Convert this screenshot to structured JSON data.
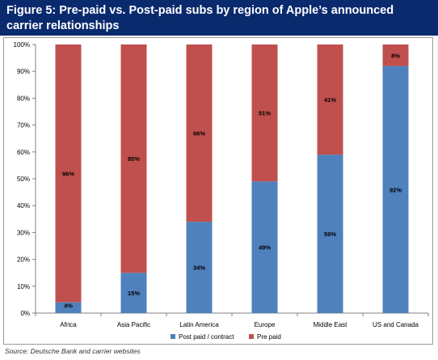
{
  "title": "Figure 5: Pre-paid vs. Post-paid subs by region of Apple’s announced carrier relationships",
  "source": "Source: Deutsche Bank and carrier websites",
  "colors": {
    "title_bg": "#0a2a6e",
    "post_paid": "#4f81bd",
    "pre_paid": "#c0504d"
  },
  "chart_data": {
    "type": "bar",
    "stacked": true,
    "categories": [
      "Africa",
      "Asia Pacific",
      "Latin America",
      "Europe",
      "Middle East",
      "US and Canada"
    ],
    "series": [
      {
        "name": "Post paid / contract",
        "values": [
          4,
          15,
          34,
          49,
          59,
          92
        ],
        "color": "#4f81bd"
      },
      {
        "name": "Pre paid",
        "values": [
          96,
          85,
          66,
          51,
          41,
          8
        ],
        "color": "#c0504d"
      }
    ],
    "ylim": [
      0,
      100
    ],
    "yticks": [
      "0%",
      "10%",
      "20%",
      "30%",
      "40%",
      "50%",
      "60%",
      "70%",
      "80%",
      "90%",
      "100%"
    ],
    "legend": "bottom",
    "grid": false,
    "value_format": "percent"
  }
}
